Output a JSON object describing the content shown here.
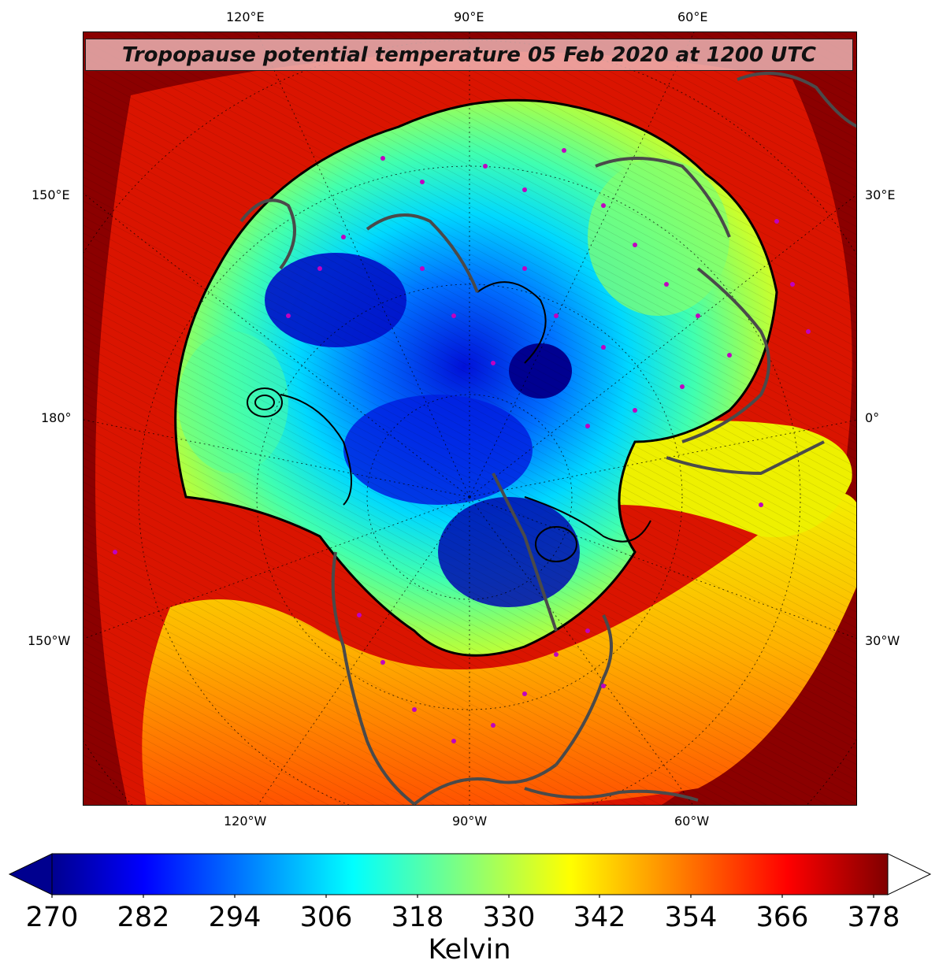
{
  "title": "Tropopause potential temperature 05 Feb 2020 at 1200 UTC",
  "longitude_labels": {
    "top": [
      "120°E",
      "90°E",
      "60°E"
    ],
    "bottom": [
      "120°W",
      "90°W",
      "60°W"
    ],
    "left": [
      "150°E",
      "180°",
      "150°W"
    ],
    "right": [
      "30°E",
      "0°",
      "30°W"
    ]
  },
  "colorbar": {
    "ticks": [
      "270",
      "282",
      "294",
      "306",
      "318",
      "330",
      "342",
      "354",
      "366",
      "378"
    ],
    "min": 270,
    "max": 380,
    "extend": "both (upper arrow white)",
    "colormap": "jet",
    "units_label": "Kelvin"
  },
  "colors": {
    "dark_blue": "#00008f",
    "blue": "#0040ff",
    "cyan": "#00d8ff",
    "aqua_green": "#30ffc0",
    "green": "#90ff60",
    "yellow": "#f4f000",
    "orange": "#ff9000",
    "red": "#ff2000",
    "dark_red": "#8b0000",
    "coastline": "#4a4a4a",
    "station_marker": "#c000c0"
  }
}
